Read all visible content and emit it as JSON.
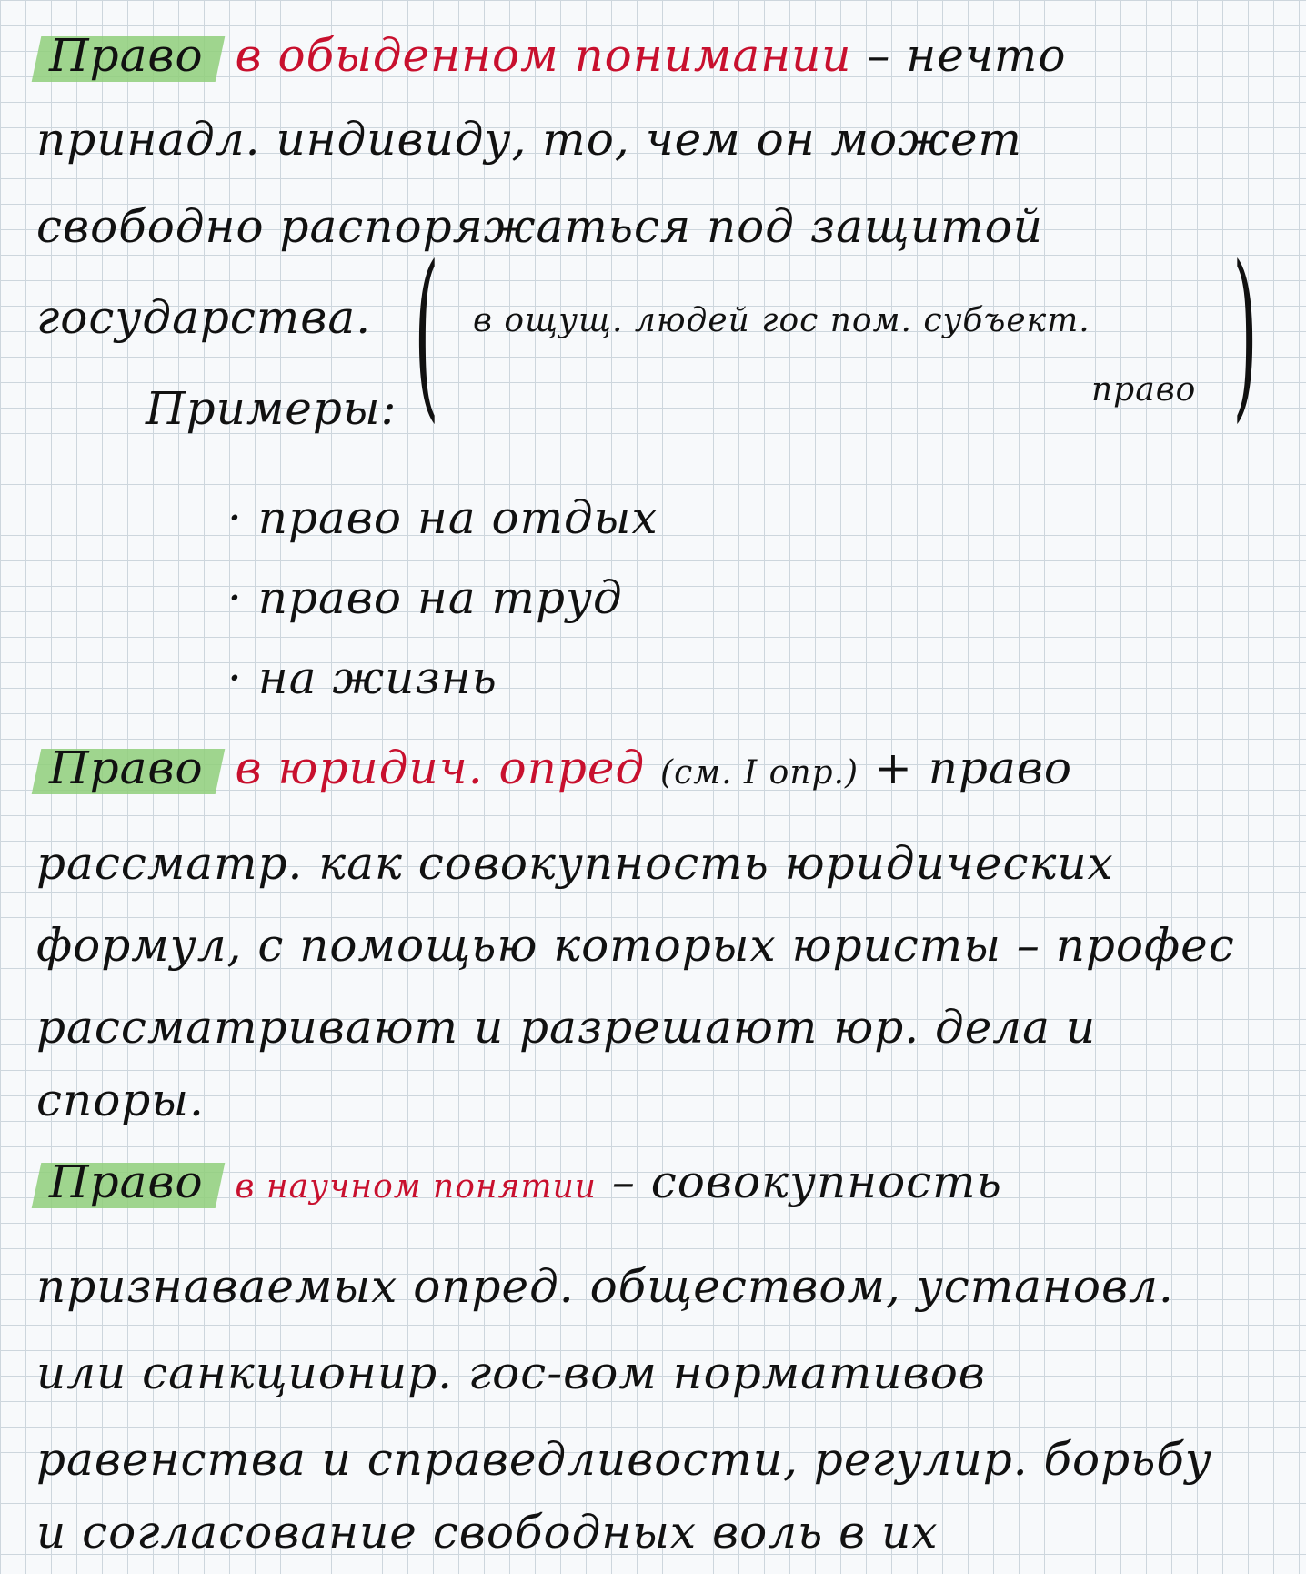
{
  "section1": {
    "line1": {
      "highlight": "Право",
      "red": "в обыденном понимании",
      "rest": " – нечто"
    },
    "line2": "принадл. индивиду, то, чем он может",
    "line3": "свободно распоряжаться под защитой",
    "line4": "государства.",
    "aside_main": "в ощущ. людей гос пом. субъект.",
    "aside_sub": "право",
    "primery_label": "Примеры:",
    "examples": [
      "· право на отдых",
      "· право на труд",
      "· на жизнь"
    ]
  },
  "section2": {
    "line1": {
      "highlight": "Право",
      "red": "в юридич. опред",
      "note": "(см. I опр.)",
      "rest": " + право"
    },
    "line2": "рассматр. как совокупность юридических",
    "line3": "формул, с помощью которых юристы – профес",
    "line4": "рассматривают и разрешают юр. дела и",
    "line5": "споры."
  },
  "section3": {
    "line1": {
      "highlight": "Право",
      "red": "в научном понятии",
      "rest": " – совокупность"
    },
    "line2": "признаваемых опред. обществом, установл.",
    "line3": "или санкционир. гос-вом нормативов",
    "line4": "равенства и справедливости, регулир. борьбу",
    "line5": "и согласование свободных воль в их"
  },
  "colors": {
    "ink": "#111111",
    "red": "#c8102e",
    "highlight": "#8fcf7a"
  }
}
